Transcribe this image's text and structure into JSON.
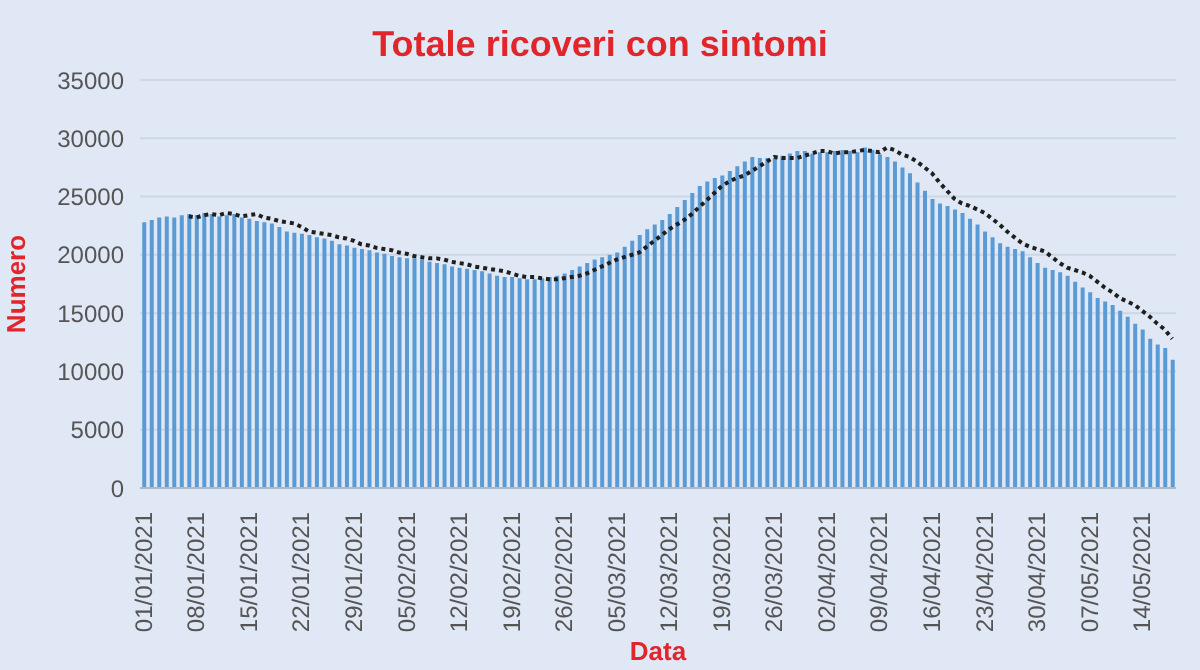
{
  "chart_data": {
    "type": "bar",
    "title": "Totale ricoveri con sintomi",
    "xlabel": "Data",
    "ylabel": "Numero",
    "categories": [
      "01/01/2021",
      null,
      null,
      null,
      null,
      null,
      null,
      "08/01/2021",
      null,
      null,
      null,
      null,
      null,
      null,
      "15/01/2021",
      null,
      null,
      null,
      null,
      null,
      null,
      "22/01/2021",
      null,
      null,
      null,
      null,
      null,
      null,
      "29/01/2021",
      null,
      null,
      null,
      null,
      null,
      null,
      "05/02/2021",
      null,
      null,
      null,
      null,
      null,
      null,
      "12/02/2021",
      null,
      null,
      null,
      null,
      null,
      null,
      "19/02/2021",
      null,
      null,
      null,
      null,
      null,
      null,
      "26/02/2021",
      null,
      null,
      null,
      null,
      null,
      null,
      "05/03/2021",
      null,
      null,
      null,
      null,
      null,
      null,
      "12/03/2021",
      null,
      null,
      null,
      null,
      null,
      null,
      "19/03/2021",
      null,
      null,
      null,
      null,
      null,
      null,
      "26/03/2021",
      null,
      null,
      null,
      null,
      null,
      null,
      "02/04/2021",
      null,
      null,
      null,
      null,
      null,
      null,
      "09/04/2021",
      null,
      null,
      null,
      null,
      null,
      null,
      "16/04/2021",
      null,
      null,
      null,
      null,
      null,
      null,
      "23/04/2021",
      null,
      null,
      null,
      null,
      null,
      null,
      "30/04/2021",
      null,
      null,
      null,
      null,
      null,
      null,
      "07/05/2021",
      null,
      null,
      null,
      null,
      null,
      null,
      "14/05/2021",
      null,
      null,
      null,
      null
    ],
    "series": [
      {
        "color": "#5b9bd5",
        "values": [
          22800,
          23000,
          23200,
          23300,
          23200,
          23400,
          23500,
          23400,
          23600,
          23500,
          23300,
          23400,
          23500,
          23200,
          23100,
          22900,
          22800,
          22700,
          22400,
          22000,
          21900,
          21800,
          21700,
          21500,
          21400,
          21200,
          20900,
          20800,
          20600,
          20500,
          20400,
          20200,
          20100,
          19900,
          19800,
          19700,
          19700,
          19600,
          19400,
          19300,
          19200,
          19000,
          18900,
          18800,
          18700,
          18600,
          18400,
          18200,
          18100,
          18100,
          18000,
          17900,
          17900,
          18000,
          18100,
          18200,
          18400,
          18700,
          19000,
          19300,
          19600,
          19800,
          20000,
          20200,
          20700,
          21200,
          21700,
          22200,
          22600,
          23000,
          23500,
          24100,
          24700,
          25300,
          25900,
          26300,
          26600,
          26800,
          27200,
          27600,
          28000,
          28400,
          28300,
          28300,
          28300,
          28500,
          28700,
          28900,
          28900,
          28700,
          28800,
          28800,
          28900,
          29000,
          28900,
          28800,
          29200,
          29000,
          28600,
          28400,
          28000,
          27500,
          27000,
          26200,
          25500,
          24800,
          24400,
          24200,
          23900,
          23600,
          23100,
          22600,
          22000,
          21500,
          21000,
          20700,
          20500,
          20300,
          19800,
          19300,
          18900,
          18700,
          18500,
          18200,
          17700,
          17200,
          16800,
          16300,
          16000,
          15700,
          15200,
          14700,
          14100,
          13600,
          12800,
          12300,
          12000,
          11000
        ]
      },
      {
        "type": "line",
        "color": "#1f1f1f",
        "line_style": "dotted",
        "marker": "none",
        "values": [
          null,
          null,
          null,
          null,
          null,
          null,
          23300,
          23200,
          23400,
          23500,
          23400,
          23600,
          23500,
          23300,
          23400,
          23500,
          23200,
          23100,
          22900,
          22800,
          22700,
          22400,
          22000,
          21900,
          21800,
          21700,
          21500,
          21400,
          21200,
          20900,
          20800,
          20600,
          20500,
          20400,
          20200,
          20100,
          19900,
          19800,
          19700,
          19700,
          19600,
          19400,
          19300,
          19200,
          19000,
          18900,
          18800,
          18700,
          18600,
          18400,
          18200,
          18100,
          18100,
          18000,
          17900,
          17900,
          18000,
          18100,
          18200,
          18400,
          18700,
          19000,
          19300,
          19600,
          19800,
          20000,
          20200,
          20700,
          21200,
          21700,
          22200,
          22600,
          23000,
          23500,
          24100,
          24700,
          25300,
          25900,
          26300,
          26600,
          26800,
          27200,
          27600,
          28000,
          28400,
          28300,
          28300,
          28300,
          28500,
          28700,
          28900,
          28900,
          28700,
          28800,
          28800,
          28900,
          29000,
          28900,
          28800,
          29200,
          29000,
          28600,
          28400,
          28000,
          27500,
          27000,
          26200,
          25500,
          24800,
          24400,
          24200,
          23900,
          23600,
          23100,
          22600,
          22000,
          21500,
          21000,
          20700,
          20500,
          20300,
          19800,
          19300,
          18900,
          18700,
          18500,
          18200,
          17700,
          17200,
          16800,
          16300,
          16000,
          15700,
          15200,
          14700,
          14100,
          13600,
          12800
        ]
      }
    ],
    "ylim": [
      0,
      35000
    ],
    "yticks": [
      0,
      5000,
      10000,
      15000,
      20000,
      25000,
      30000,
      35000
    ],
    "grid": "y",
    "legend": false
  }
}
